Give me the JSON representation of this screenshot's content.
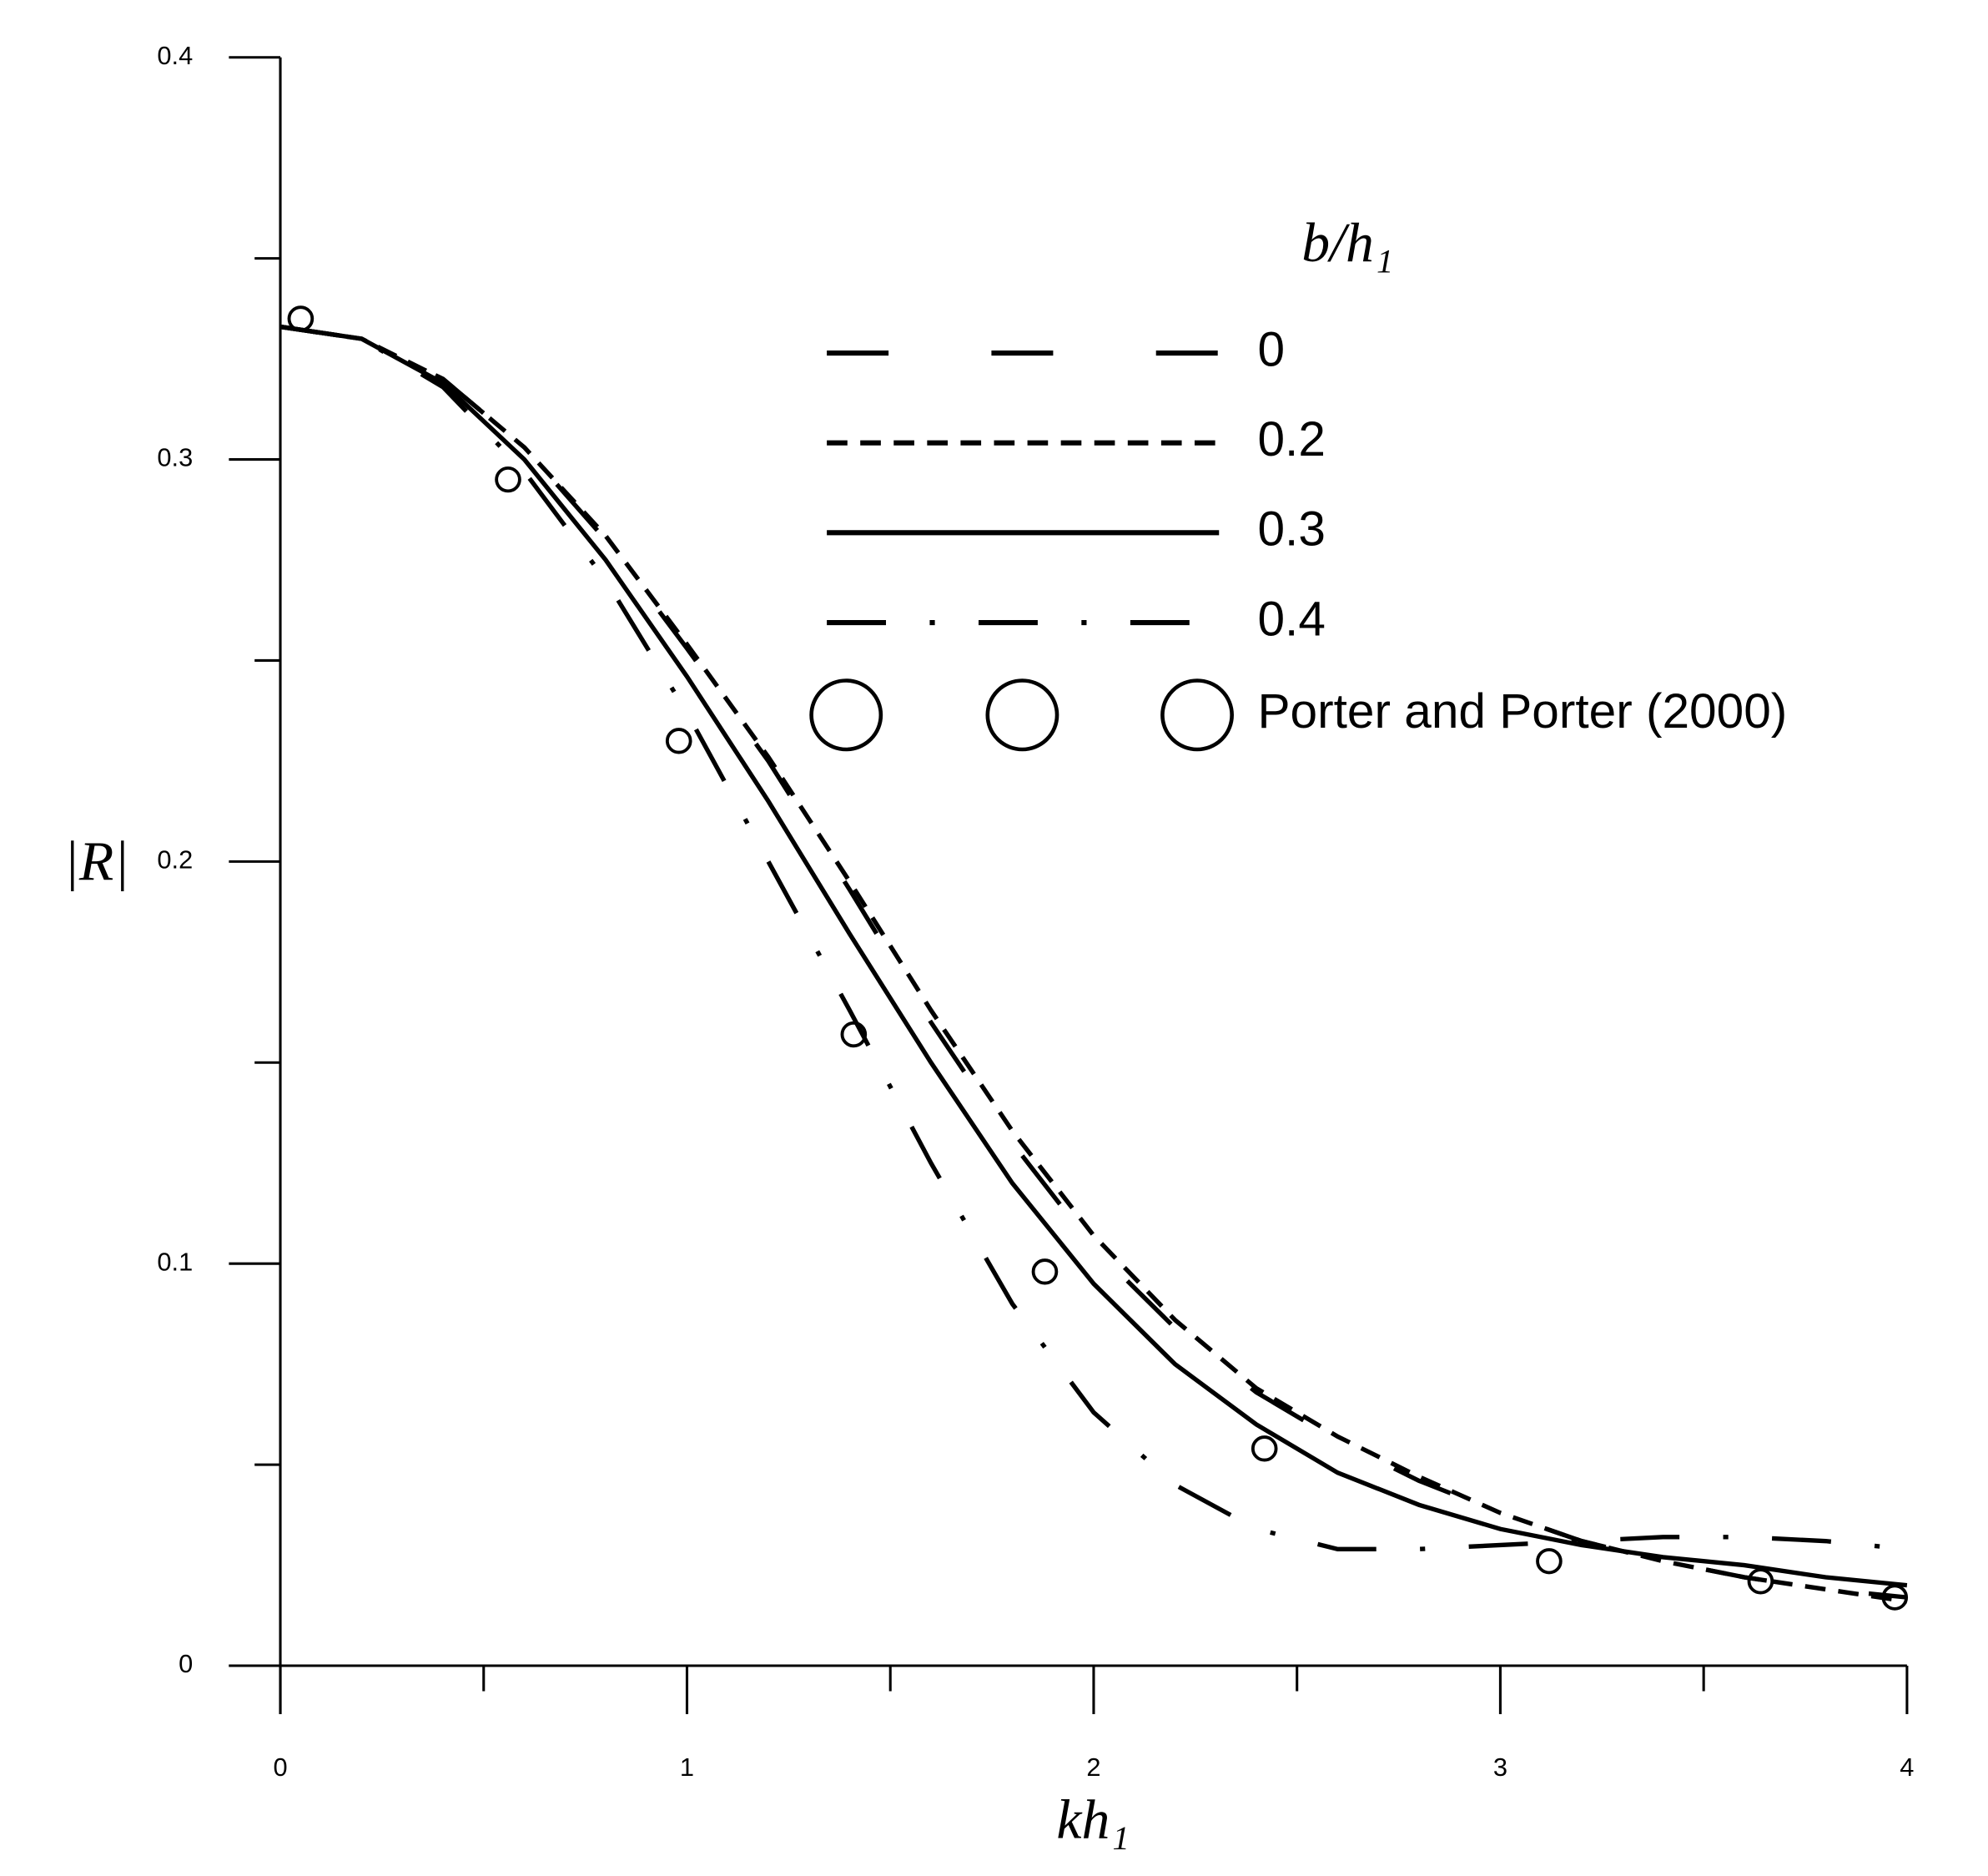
{
  "chart_data": {
    "type": "line",
    "xlabel": "kh₁",
    "ylabel": "|R|",
    "legend_title": "b/h₁",
    "x": [
      0,
      0.2,
      0.4,
      0.6,
      0.8,
      1.0,
      1.2,
      1.4,
      1.6,
      1.8,
      2.0,
      2.2,
      2.4,
      2.6,
      2.8,
      3.0,
      3.2,
      3.4,
      3.6,
      3.8,
      4.0
    ],
    "series": [
      {
        "name": "0",
        "color": "#000000",
        "dash": "long",
        "values": [
          0.333,
          0.33,
          0.32,
          0.303,
          0.28,
          0.253,
          0.225,
          0.193,
          0.16,
          0.13,
          0.104,
          0.084,
          0.068,
          0.056,
          0.046,
          0.038,
          0.031,
          0.026,
          0.022,
          0.019,
          0.017
        ]
      },
      {
        "name": "0.2",
        "color": "#000000",
        "dash": "short",
        "values": [
          0.333,
          0.33,
          0.32,
          0.303,
          0.281,
          0.254,
          0.226,
          0.195,
          0.163,
          0.133,
          0.107,
          0.086,
          0.069,
          0.057,
          0.047,
          0.038,
          0.031,
          0.026,
          0.022,
          0.019,
          0.016
        ]
      },
      {
        "name": "0.3",
        "color": "#000000",
        "dash": "solid",
        "values": [
          0.333,
          0.33,
          0.319,
          0.3,
          0.275,
          0.246,
          0.215,
          0.182,
          0.15,
          0.12,
          0.095,
          0.075,
          0.06,
          0.048,
          0.04,
          0.034,
          0.03,
          0.027,
          0.025,
          0.022,
          0.02
        ]
      },
      {
        "name": "0.4",
        "color": "#000000",
        "dash": "dashdot",
        "values": [
          0.333,
          0.33,
          0.318,
          0.297,
          0.27,
          0.237,
          0.2,
          0.163,
          0.125,
          0.09,
          0.063,
          0.045,
          0.034,
          0.029,
          0.029,
          0.03,
          0.031,
          0.032,
          0.032,
          0.031,
          0.029
        ]
      }
    ],
    "points": {
      "name": "Porter and Porter (2000)",
      "color": "#000000",
      "x": [
        0.05,
        0.56,
        0.98,
        1.41,
        1.88,
        2.42,
        3.12,
        3.64,
        3.97
      ],
      "values": [
        0.335,
        0.295,
        0.23,
        0.157,
        0.098,
        0.054,
        0.026,
        0.021,
        0.017
      ]
    },
    "xlim": [
      0,
      4
    ],
    "ylim": [
      0,
      0.4
    ],
    "xticks": [
      0,
      1,
      2,
      3,
      4
    ],
    "yticks": [
      0,
      0.1,
      0.2,
      0.3,
      0.4
    ],
    "xminor_ticks": [
      0.5,
      1.5,
      2.5,
      3.5
    ],
    "yminor_ticks": [
      0.05,
      0.15,
      0.25,
      0.35
    ],
    "grid": false
  }
}
